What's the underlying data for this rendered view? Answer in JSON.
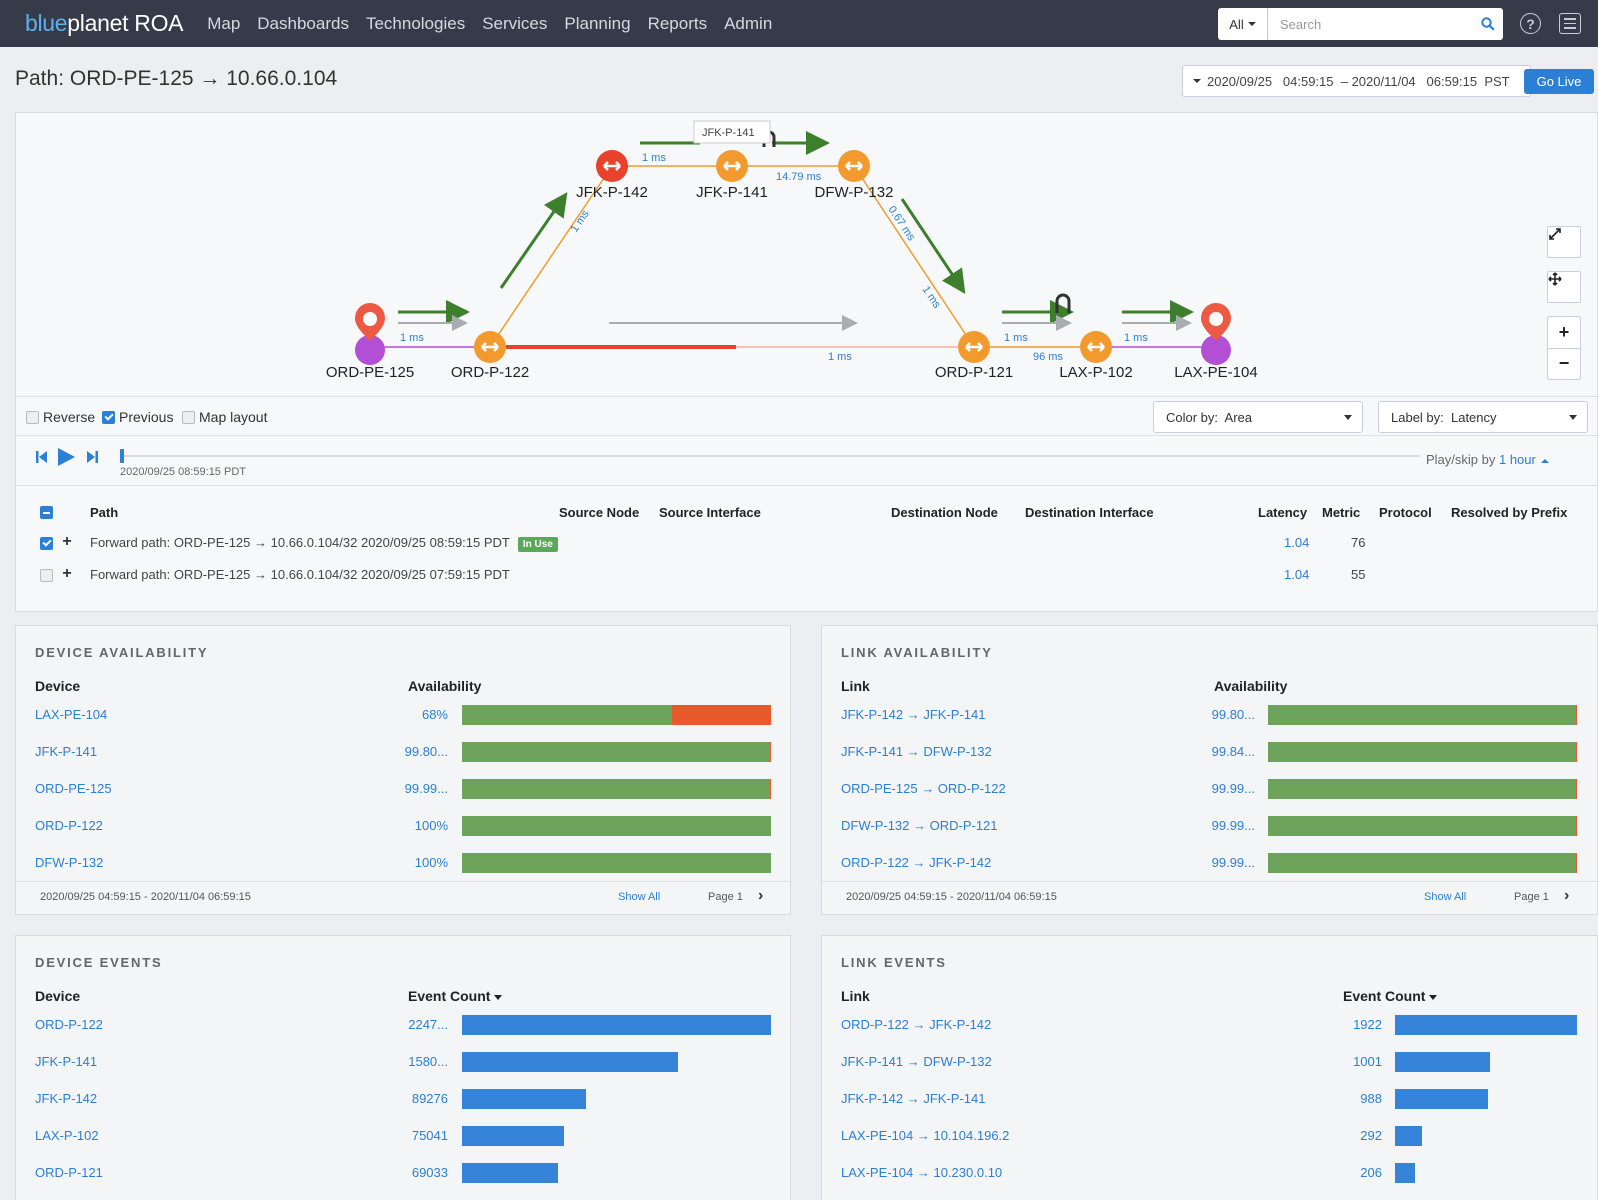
{
  "app": {
    "brand_prefix": "blue",
    "brand_main": "planet",
    "brand_suffix": " ROA"
  },
  "nav": [
    "Map",
    "Dashboards",
    "Technologies",
    "Services",
    "Planning",
    "Reports",
    "Admin"
  ],
  "search": {
    "scope": "All",
    "placeholder": "Search"
  },
  "page": {
    "title": "Path: ORD-PE-125 → 10.66.0.104",
    "daterange": "2020/09/25   04:59:15  – 2020/11/04   06:59:15  PST",
    "golive_label": "Go Live"
  },
  "topology": {
    "nodes": {
      "ord_pe_125": "ORD-PE-125",
      "ord_p_122": "ORD-P-122",
      "jfk_p_142": "JFK-P-142",
      "jfk_p_141": "JFK-P-141",
      "dfw_p_132": "DFW-P-132",
      "ord_p_121": "ORD-P-121",
      "lax_p_102": "LAX-P-102",
      "lax_pe_104": "LAX-PE-104"
    },
    "tooltip": "JFK-P-141",
    "latencies": {
      "l1": "1 ms",
      "l2": "1 ms",
      "l3": "1 ms",
      "l4": "14.79 ms",
      "l5": "0.67 ms",
      "l6": "1 ms",
      "l7": "1 ms",
      "l8": "1 ms",
      "l9": "96 ms",
      "l10": "1 ms"
    },
    "colors": {
      "green": "#3d7f2c",
      "orange": "#f29a2e",
      "red": "#e8412c",
      "purple": "#b24fd4",
      "gray": "#a9acb1"
    }
  },
  "options": {
    "reverse": "Reverse",
    "previous": "Previous",
    "map_layout": "Map layout",
    "color_by": "Color by:  Area",
    "label_by": "Label by:  Latency"
  },
  "playback": {
    "timestamp": "2020/09/25 08:59:15 PDT",
    "skip_prefix": "Play/skip by ",
    "skip_value": "1 hour"
  },
  "path_table": {
    "headers": {
      "path": "Path",
      "source_node": "Source Node",
      "source_interface": "Source Interface",
      "destination_node": "Destination Node",
      "destination_interface": "Destination Interface",
      "latency": "Latency",
      "metric": "Metric",
      "protocol": "Protocol",
      "resolved": "Resolved by Prefix"
    },
    "rows": [
      {
        "path": "Forward path: ORD-PE-125 → 10.66.0.104/32 2020/09/25 08:59:15 PDT",
        "badge": "In Use",
        "latency": "1.04",
        "metric": "76"
      },
      {
        "path": "Forward path: ORD-PE-125 → 10.66.0.104/32 2020/09/25 07:59:15 PDT",
        "badge": "",
        "latency": "1.04",
        "metric": "55"
      }
    ]
  },
  "device_availability": {
    "title": "DEVICE AVAILABILITY",
    "col1": "Device",
    "col2": "Availability",
    "rows": [
      {
        "name": "LAX-PE-104",
        "value": "68%",
        "fraction": 0.68
      },
      {
        "name": "JFK-P-141",
        "value": "99.80...",
        "fraction": 0.998
      },
      {
        "name": "ORD-PE-125",
        "value": "99.99...",
        "fraction": 0.9999
      },
      {
        "name": "ORD-P-122",
        "value": "100%",
        "fraction": 1.0
      },
      {
        "name": "DFW-P-132",
        "value": "100%",
        "fraction": 1.0
      }
    ],
    "footer_range": "2020/09/25 04:59:15 - 2020/11/04 06:59:15",
    "show_all": "Show All",
    "page": "Page 1"
  },
  "link_availability": {
    "title": "LINK AVAILABILITY",
    "col1": "Link",
    "col2": "Availability",
    "rows": [
      {
        "name": "JFK-P-142 → JFK-P-141",
        "value": "99.80...",
        "fraction": 0.998
      },
      {
        "name": "JFK-P-141 → DFW-P-132",
        "value": "99.84...",
        "fraction": 0.9984
      },
      {
        "name": "ORD-PE-125 → ORD-P-122",
        "value": "99.99...",
        "fraction": 0.9999
      },
      {
        "name": "DFW-P-132 → ORD-P-121",
        "value": "99.99...",
        "fraction": 0.9999
      },
      {
        "name": "ORD-P-122 → JFK-P-142",
        "value": "99.99...",
        "fraction": 0.9999
      }
    ],
    "footer_range": "2020/09/25 04:59:15 - 2020/11/04 06:59:15",
    "show_all": "Show All",
    "page": "Page 1"
  },
  "device_events": {
    "title": "DEVICE EVENTS",
    "col1": "Device",
    "col2": "Event Count",
    "rows": [
      {
        "name": "ORD-P-122",
        "value": "2247...",
        "fraction": 1.0
      },
      {
        "name": "JFK-P-141",
        "value": "1580...",
        "fraction": 0.7
      },
      {
        "name": "JFK-P-142",
        "value": "89276",
        "fraction": 0.4
      },
      {
        "name": "LAX-P-102",
        "value": "75041",
        "fraction": 0.33
      },
      {
        "name": "ORD-P-121",
        "value": "69033",
        "fraction": 0.31
      }
    ]
  },
  "link_events": {
    "title": "LINK EVENTS",
    "col1": "Link",
    "col2": "Event Count",
    "rows": [
      {
        "name": "ORD-P-122 → JFK-P-142",
        "value": "1922",
        "fraction": 1.0
      },
      {
        "name": "JFK-P-141 → DFW-P-132",
        "value": "1001",
        "fraction": 0.52
      },
      {
        "name": "JFK-P-142 → JFK-P-141",
        "value": "988",
        "fraction": 0.51
      },
      {
        "name": "LAX-PE-104 → 10.104.196.2",
        "value": "292",
        "fraction": 0.15
      },
      {
        "name": "LAX-PE-104 → 10.230.0.10",
        "value": "206",
        "fraction": 0.11
      }
    ]
  }
}
